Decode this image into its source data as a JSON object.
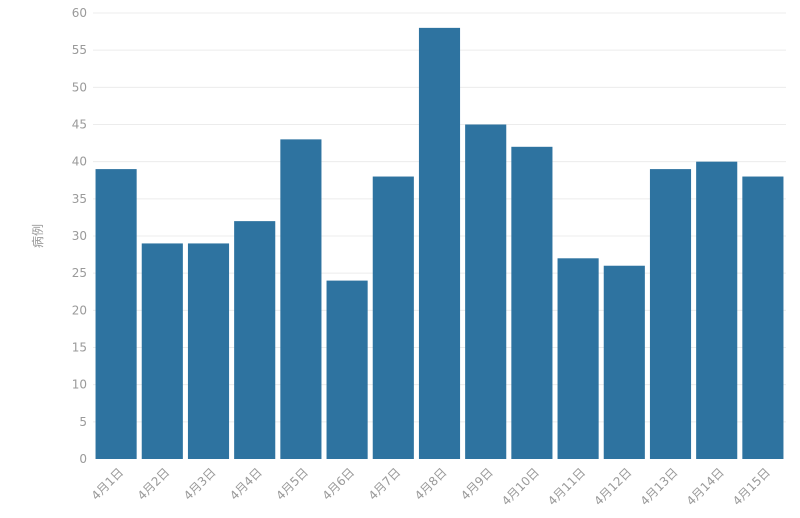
{
  "chart_data": {
    "type": "bar",
    "categories": [
      "4月1日",
      "4月2日",
      "4月3日",
      "4月4日",
      "4月5日",
      "4月6日",
      "4月7日",
      "4月8日",
      "4月9日",
      "4月10日",
      "4月11日",
      "4月12日",
      "4月13日",
      "4月14日",
      "4月15日"
    ],
    "values": [
      39,
      29,
      29,
      32,
      43,
      24,
      38,
      58,
      45,
      42,
      27,
      26,
      39,
      40,
      38
    ],
    "title": "",
    "xlabel": "",
    "ylabel": "病例",
    "ylim": [
      0,
      60
    ],
    "yticks": [
      0,
      5,
      10,
      15,
      20,
      25,
      30,
      35,
      40,
      45,
      50,
      55,
      60
    ],
    "grid": true,
    "legend": "none",
    "bar_color": "#2e73a0"
  }
}
